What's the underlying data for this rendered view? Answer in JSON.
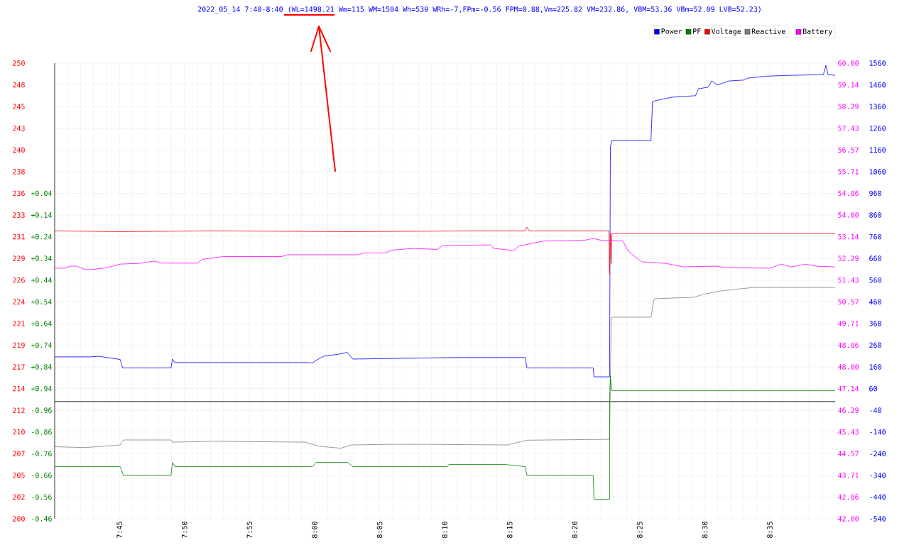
{
  "chart_data": [
    {
      "type": "line",
      "title": "2022_05_14 7:40-8:40 (WL=1498.21 Wm=115 WM=1504 Wh=539 WRh=-7,FPm=-0.56 FPM=0.88,Vm=225.82 VM=232.86, VBM=53.36 VBm=52.09 LVB=52.23)",
      "xlim": [
        7.667,
        8.667
      ],
      "xticks": [
        {
          "value": 7.6833,
          "label": null
        },
        {
          "value": 7.7,
          "label": null
        },
        {
          "value": 7.7167,
          "label": null
        },
        {
          "value": 7.7333,
          "label": null
        },
        {
          "value": 7.75,
          "label": "7:45"
        },
        {
          "value": 7.7667,
          "label": null
        },
        {
          "value": 7.7833,
          "label": null
        },
        {
          "value": 7.8,
          "label": null
        },
        {
          "value": 7.8167,
          "label": null
        },
        {
          "value": 7.8333,
          "label": "7:50"
        },
        {
          "value": 7.85,
          "label": null
        },
        {
          "value": 7.8667,
          "label": null
        },
        {
          "value": 7.8833,
          "label": null
        },
        {
          "value": 7.9,
          "label": null
        },
        {
          "value": 7.9167,
          "label": "7:55"
        },
        {
          "value": 7.9333,
          "label": null
        },
        {
          "value": 7.95,
          "label": null
        },
        {
          "value": 7.9667,
          "label": null
        },
        {
          "value": 7.9833,
          "label": null
        },
        {
          "value": 8,
          "label": "8:00"
        },
        {
          "value": 8.0167,
          "label": null
        },
        {
          "value": 8.0333,
          "label": null
        },
        {
          "value": 8.05,
          "label": null
        },
        {
          "value": 8.0667,
          "label": null
        },
        {
          "value": 8.0833,
          "label": "8:05"
        },
        {
          "value": 8.1,
          "label": null
        },
        {
          "value": 8.1167,
          "label": null
        },
        {
          "value": 8.1333,
          "label": null
        },
        {
          "value": 8.15,
          "label": null
        },
        {
          "value": 8.1667,
          "label": "8:10"
        },
        {
          "value": 8.1833,
          "label": null
        },
        {
          "value": 8.2,
          "label": null
        },
        {
          "value": 8.2167,
          "label": null
        },
        {
          "value": 8.2333,
          "label": null
        },
        {
          "value": 8.25,
          "label": "8:15"
        },
        {
          "value": 8.2667,
          "label": null
        },
        {
          "value": 8.2833,
          "label": null
        },
        {
          "value": 8.3,
          "label": null
        },
        {
          "value": 8.3167,
          "label": null
        },
        {
          "value": 8.3333,
          "label": "8:20"
        },
        {
          "value": 8.35,
          "label": null
        },
        {
          "value": 8.3667,
          "label": null
        },
        {
          "value": 8.3833,
          "label": null
        },
        {
          "value": 8.4,
          "label": null
        },
        {
          "value": 8.4167,
          "label": "8:25"
        },
        {
          "value": 8.4333,
          "label": null
        },
        {
          "value": 8.45,
          "label": null
        },
        {
          "value": 8.4667,
          "label": null
        },
        {
          "value": 8.4833,
          "label": null
        },
        {
          "value": 8.5,
          "label": "8:30"
        },
        {
          "value": 8.5167,
          "label": null
        },
        {
          "value": 8.5333,
          "label": null
        },
        {
          "value": 8.55,
          "label": null
        },
        {
          "value": 8.5667,
          "label": null
        },
        {
          "value": 8.5833,
          "label": "8:35"
        },
        {
          "value": 8.6,
          "label": null
        },
        {
          "value": 8.6167,
          "label": null
        },
        {
          "value": 8.6333,
          "label": null
        },
        {
          "value": 8.65,
          "label": null
        }
      ],
      "ylim": [
        -540,
        1560
      ],
      "yticks": [
        -540,
        -440,
        -340,
        -240,
        -140,
        -40,
        60,
        160,
        260,
        360,
        460,
        560,
        660,
        760,
        860,
        960,
        1060,
        1160,
        1260,
        1360,
        1460,
        1560
      ],
      "y2lim": [
        1.54,
        -0.56
      ],
      "y2ticks": [
        {
          "value": 0.04,
          "label": "+0.04"
        },
        {
          "value": 0.14,
          "label": "+0.14"
        },
        {
          "value": 0.24,
          "label": "+0.24"
        },
        {
          "value": 0.34,
          "label": "+0.34"
        },
        {
          "value": 0.44,
          "label": "+0.44"
        },
        {
          "value": 0.54,
          "label": "+0.54"
        },
        {
          "value": 0.64,
          "label": "+0.64"
        },
        {
          "value": 0.74,
          "label": "+0.74"
        },
        {
          "value": 0.84,
          "label": "+0.84"
        },
        {
          "value": 0.94,
          "label": "+0.94"
        }
      ],
      "y3lim": [
        200,
        250
      ],
      "y3ticks": [
        200,
        {
          "value": 202.381,
          "label": "202"
        },
        {
          "value": 204.762,
          "label": "205"
        },
        {
          "value": 207.143,
          "label": "207"
        },
        {
          "value": 209.524,
          "label": "210"
        },
        {
          "value": 211.905,
          "label": "212"
        },
        {
          "value": 214.286,
          "label": "214"
        },
        {
          "value": 216.667,
          "label": "217"
        },
        {
          "value": 219.048,
          "label": "219"
        },
        {
          "value": 221.429,
          "label": "221"
        },
        {
          "value": 223.81,
          "label": "224"
        },
        {
          "value": 226.19,
          "label": "226"
        },
        {
          "value": 228.571,
          "label": "229"
        },
        {
          "value": 230.952,
          "label": "231"
        },
        {
          "value": 233.333,
          "label": "233"
        },
        {
          "value": 235.714,
          "label": "236"
        },
        {
          "value": 238.095,
          "label": "238"
        },
        {
          "value": 240.476,
          "label": "240"
        },
        {
          "value": 242.857,
          "label": "243"
        },
        {
          "value": 245.238,
          "label": "245"
        },
        {
          "value": 247.619,
          "label": "248"
        },
        250
      ],
      "grid": true,
      "legend": "top right",
      "ref_lines": [
        {
          "axis": "y",
          "value": 0,
          "color": "#000000"
        }
      ],
      "series": [
        {
          "name": "Power",
          "color": "#0000ff",
          "x": [
            7.667,
            7.713,
            7.723,
            7.751,
            7.754,
            7.816,
            7.818,
            7.821,
            7.989,
            7.997,
            8.011,
            8.032,
            8.042,
            8.049,
            8.179,
            8.244,
            8.27,
            8.272,
            8.357,
            8.358,
            8.378,
            8.379,
            8.381,
            8.431,
            8.433,
            8.438,
            8.458,
            8.488,
            8.492,
            8.504,
            8.509,
            8.516,
            8.531,
            8.55,
            8.555,
            8.579,
            8.61,
            8.652,
            8.655,
            8.658,
            8.667
          ],
          "values": [
            206,
            206,
            209,
            194,
            155,
            155,
            196,
            180,
            180,
            178,
            209,
            219,
            227,
            196,
            203,
            203,
            203,
            155,
            155,
            114,
            114,
            1177,
            1203,
            1203,
            1383,
            1388,
            1403,
            1410,
            1442,
            1449,
            1478,
            1459,
            1478,
            1482,
            1491,
            1500,
            1504,
            1507,
            1550,
            1507,
            1504
          ]
        },
        {
          "name": "PF",
          "color": "#008000",
          "axis": "y2",
          "x": [
            8.378,
            8.379,
            8.381,
            8.499,
            8.52,
            8.667
          ],
          "values": [
            1.0,
            0.88,
            0.95,
            0.95,
            0.95,
            0.95
          ]
        },
        {
          "name": "Voltage",
          "color": "#ff0000",
          "axis": "y3",
          "x": [
            7.667,
            7.75,
            7.87,
            8.047,
            8.209,
            8.27,
            8.272,
            8.275,
            8.377,
            8.378,
            8.379,
            8.38,
            8.381,
            8.667
          ],
          "values": [
            231.6,
            231.5,
            231.6,
            231.5,
            231.6,
            231.6,
            232.0,
            231.6,
            231.6,
            226.8,
            231.3,
            228.0,
            231.3,
            231.3
          ]
        },
        {
          "name": "Reactive",
          "color": "#808080",
          "x": [
            7.667,
            7.706,
            7.751,
            7.755,
            7.816,
            7.818,
            7.87,
            7.988,
            8.006,
            8.034,
            8.047,
            8.097,
            8.143,
            8.247,
            8.272,
            8.378,
            8.38,
            8.381,
            8.431,
            8.435,
            8.486,
            8.499,
            8.52,
            8.562,
            8.598,
            8.667
          ],
          "values": [
            -208,
            -212,
            -200,
            -177,
            -177,
            -187,
            -183,
            -187,
            -206,
            -215,
            -200,
            -197,
            -197,
            -200,
            -178,
            -174,
            373,
            389,
            389,
            474,
            481,
            495,
            510,
            526,
            526,
            526
          ]
        }
      ]
    },
    {
      "type": "line",
      "xlim": [
        7.667,
        8.667
      ],
      "ylim": [
        42,
        60
      ],
      "yticks": [
        {
          "value": 42,
          "label": "42.00"
        },
        {
          "value": 42.857,
          "label": "42.86"
        },
        {
          "value": 43.714,
          "label": "43.71"
        },
        {
          "value": 44.571,
          "label": "44.57"
        },
        {
          "value": 45.429,
          "label": "45.43"
        },
        {
          "value": 46.286,
          "label": "46.29"
        },
        {
          "value": 47.143,
          "label": "47.14"
        },
        {
          "value": 48,
          "label": "48.00"
        },
        {
          "value": 48.857,
          "label": "48.86"
        },
        {
          "value": 49.714,
          "label": "49.71"
        },
        {
          "value": 50.571,
          "label": "50.57"
        },
        {
          "value": 51.429,
          "label": "51.43"
        },
        {
          "value": 52.286,
          "label": "52.29"
        },
        {
          "value": 53.143,
          "label": "53.14"
        },
        {
          "value": 54,
          "label": "54.00"
        },
        {
          "value": 54.857,
          "label": "54.86"
        },
        {
          "value": 55.714,
          "label": "55.71"
        },
        {
          "value": 56.571,
          "label": "56.57"
        },
        {
          "value": 57.429,
          "label": "57.43"
        },
        {
          "value": 58.286,
          "label": "58.29"
        },
        {
          "value": 59.143,
          "label": "59.14"
        },
        {
          "value": 60,
          "label": "60.00"
        }
      ],
      "tick_labels": "y",
      "legend": "top right",
      "series": [
        {
          "name": "Battery",
          "color": "#ff00ff",
          "x": [
            7.667,
            7.68,
            7.687,
            7.695,
            7.706,
            7.713,
            7.734,
            7.751,
            7.776,
            7.795,
            7.804,
            7.85,
            7.856,
            7.884,
            7.958,
            7.965,
            8.056,
            8.063,
            8.091,
            8.098,
            8.126,
            8.157,
            8.164,
            8.225,
            8.23,
            8.255,
            8.262,
            8.293,
            8.346,
            8.357,
            8.367,
            8.395,
            8.402,
            8.419,
            8.45,
            8.472,
            8.514,
            8.528,
            8.584,
            8.598,
            8.611,
            8.629,
            8.643,
            8.667
          ],
          "values": [
            51.9,
            51.9,
            51.98,
            51.98,
            51.85,
            51.84,
            51.92,
            52.06,
            52.09,
            52.18,
            52.1,
            52.1,
            52.25,
            52.36,
            52.36,
            52.43,
            52.43,
            52.5,
            52.5,
            52.61,
            52.68,
            52.64,
            52.79,
            52.82,
            52.68,
            52.6,
            52.77,
            52.97,
            53.0,
            53.08,
            53.0,
            52.97,
            52.57,
            52.15,
            52.09,
            51.95,
            51.98,
            51.92,
            51.9,
            52.06,
            51.95,
            52.06,
            51.98,
            51.95
          ]
        }
      ]
    },
    {
      "type": "line",
      "xlim": [
        7.667,
        8.667
      ],
      "ylim": [
        -0.46,
        -2.56
      ],
      "yticks": [
        -0.96,
        -0.86,
        -0.76,
        -0.66,
        -0.56,
        -0.46
      ],
      "tick_labels": "y",
      "series": [
        {
          "color": "#008000",
          "x": [
            7.667,
            7.751,
            7.755,
            7.816,
            7.818,
            7.821,
            7.997,
            8.002,
            8.042,
            8.049,
            8.17,
            8.172,
            8.244,
            8.27,
            8.272,
            8.357,
            8.358,
            8.378,
            8.378
          ],
          "values": [
            -0.7,
            -0.7,
            -0.66,
            -0.66,
            -0.72,
            -0.7,
            -0.7,
            -0.72,
            -0.72,
            -0.7,
            -0.7,
            -0.71,
            -0.71,
            -0.7,
            -0.66,
            -0.66,
            -0.55,
            -0.55,
            -1.0
          ]
        }
      ]
    }
  ]
}
